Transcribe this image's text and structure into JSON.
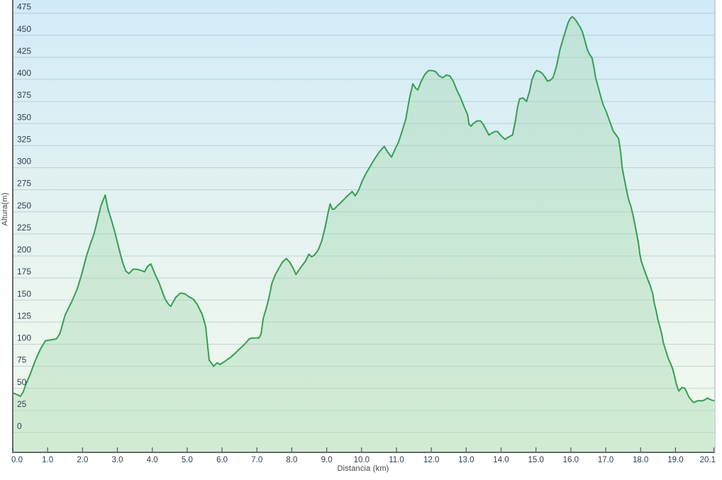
{
  "chart_data": {
    "type": "area",
    "title": "",
    "xlabel": "Distancia (km)",
    "ylabel": "Altura(m)",
    "xlim": [
      0,
      20.1
    ],
    "ylim": [
      0,
      475
    ],
    "grid": "horizontal",
    "legend": "none",
    "y_ticks": [
      0,
      25,
      50,
      75,
      100,
      125,
      150,
      175,
      200,
      225,
      250,
      275,
      300,
      325,
      350,
      375,
      400,
      425,
      450,
      475
    ],
    "x_tick_values": [
      0,
      1,
      2,
      3,
      4,
      5,
      6,
      7,
      8,
      9,
      10,
      11,
      12,
      13,
      14,
      15,
      16,
      17,
      18,
      19,
      20.1
    ],
    "x_tick_labels": [
      "0.0",
      "1.0",
      "2.0",
      "3.0",
      "4.0",
      "5.0",
      "6.0",
      "7.0",
      "8.0",
      "9.0",
      "10.0",
      "11.0",
      "12.0",
      "13.0",
      "14.0",
      "15.0",
      "16.0",
      "17.0",
      "18.0",
      "19.0",
      "20.1"
    ],
    "colors": {
      "line": "#349e53",
      "fill": "rgba(163,214,175,0.40)",
      "bg_top": "#d2ebf8",
      "bg_mid": "#e8f4ef",
      "bg_bottom": "#f1f9ec",
      "grid": "rgba(130,155,162,0.38)",
      "axis": "#6a6a6a",
      "tick": "#555555",
      "tick_text": "#2e4053",
      "right_border": "#b9c6cc"
    },
    "series": [
      {
        "name": "Altura",
        "points": [
          [
            0,
            45
          ],
          [
            0.12,
            43
          ],
          [
            0.22,
            41
          ],
          [
            0.3,
            46
          ],
          [
            0.37,
            54
          ],
          [
            0.5,
            66
          ],
          [
            0.65,
            82
          ],
          [
            0.8,
            95
          ],
          [
            0.94,
            104
          ],
          [
            1.1,
            105
          ],
          [
            1.25,
            106
          ],
          [
            1.35,
            112
          ],
          [
            1.5,
            133
          ],
          [
            1.7,
            149
          ],
          [
            1.85,
            163
          ],
          [
            1.96,
            177
          ],
          [
            2.12,
            201
          ],
          [
            2.22,
            213
          ],
          [
            2.33,
            225
          ],
          [
            2.43,
            241
          ],
          [
            2.53,
            257
          ],
          [
            2.65,
            269
          ],
          [
            2.73,
            253
          ],
          [
            2.84,
            239
          ],
          [
            2.94,
            225
          ],
          [
            3.04,
            209
          ],
          [
            3.14,
            194
          ],
          [
            3.24,
            183
          ],
          [
            3.33,
            180
          ],
          [
            3.45,
            185
          ],
          [
            3.55,
            185
          ],
          [
            3.65,
            184
          ],
          [
            3.78,
            182
          ],
          [
            3.86,
            188
          ],
          [
            3.96,
            191
          ],
          [
            4.06,
            181
          ],
          [
            4.2,
            169
          ],
          [
            4.31,
            157
          ],
          [
            4.37,
            151
          ],
          [
            4.47,
            145
          ],
          [
            4.53,
            143
          ],
          [
            4.67,
            153
          ],
          [
            4.78,
            157
          ],
          [
            4.82,
            158
          ],
          [
            4.94,
            157
          ],
          [
            5.04,
            154
          ],
          [
            5.18,
            151
          ],
          [
            5.29,
            145
          ],
          [
            5.43,
            134
          ],
          [
            5.53,
            120
          ],
          [
            5.63,
            82
          ],
          [
            5.76,
            75
          ],
          [
            5.86,
            79
          ],
          [
            5.94,
            77
          ],
          [
            6.06,
            80
          ],
          [
            6.2,
            84
          ],
          [
            6.27,
            86
          ],
          [
            6.41,
            91
          ],
          [
            6.51,
            95
          ],
          [
            6.65,
            100
          ],
          [
            6.78,
            106
          ],
          [
            6.86,
            107
          ],
          [
            7.06,
            107
          ],
          [
            7.12,
            112
          ],
          [
            7.18,
            129
          ],
          [
            7.27,
            141
          ],
          [
            7.33,
            150
          ],
          [
            7.43,
            169
          ],
          [
            7.53,
            179
          ],
          [
            7.63,
            186
          ],
          [
            7.73,
            193
          ],
          [
            7.84,
            197
          ],
          [
            7.94,
            193
          ],
          [
            8.04,
            186
          ],
          [
            8.12,
            179
          ],
          [
            8.24,
            186
          ],
          [
            8.39,
            194
          ],
          [
            8.49,
            202
          ],
          [
            8.57,
            199
          ],
          [
            8.65,
            201
          ],
          [
            8.76,
            207
          ],
          [
            8.86,
            217
          ],
          [
            8.96,
            233
          ],
          [
            9.04,
            249
          ],
          [
            9.1,
            259
          ],
          [
            9.16,
            253
          ],
          [
            9.22,
            253
          ],
          [
            9.31,
            257
          ],
          [
            9.37,
            259
          ],
          [
            9.47,
            263
          ],
          [
            9.57,
            267
          ],
          [
            9.65,
            270
          ],
          [
            9.73,
            273
          ],
          [
            9.82,
            268
          ],
          [
            9.92,
            275
          ],
          [
            10.02,
            285
          ],
          [
            10.12,
            293
          ],
          [
            10.24,
            301
          ],
          [
            10.39,
            311
          ],
          [
            10.53,
            319
          ],
          [
            10.65,
            324
          ],
          [
            10.76,
            317
          ],
          [
            10.86,
            312
          ],
          [
            10.96,
            321
          ],
          [
            11.06,
            329
          ],
          [
            11.16,
            341
          ],
          [
            11.27,
            355
          ],
          [
            11.37,
            378
          ],
          [
            11.47,
            395
          ],
          [
            11.55,
            390
          ],
          [
            11.61,
            388
          ],
          [
            11.71,
            398
          ],
          [
            11.82,
            406
          ],
          [
            11.92,
            410
          ],
          [
            12.02,
            410
          ],
          [
            12.12,
            409
          ],
          [
            12.22,
            404
          ],
          [
            12.33,
            402
          ],
          [
            12.43,
            405
          ],
          [
            12.53,
            404
          ],
          [
            12.63,
            398
          ],
          [
            12.73,
            388
          ],
          [
            12.84,
            379
          ],
          [
            12.94,
            369
          ],
          [
            13.04,
            360
          ],
          [
            13.08,
            349
          ],
          [
            13.14,
            347
          ],
          [
            13.2,
            350
          ],
          [
            13.31,
            353
          ],
          [
            13.41,
            353
          ],
          [
            13.49,
            349
          ],
          [
            13.57,
            343
          ],
          [
            13.65,
            337
          ],
          [
            13.73,
            339
          ],
          [
            13.82,
            341
          ],
          [
            13.9,
            341
          ],
          [
            13.98,
            337
          ],
          [
            14.06,
            334
          ],
          [
            14.12,
            332
          ],
          [
            14.18,
            334
          ],
          [
            14.27,
            336
          ],
          [
            14.33,
            337
          ],
          [
            14.41,
            353
          ],
          [
            14.47,
            368
          ],
          [
            14.53,
            378
          ],
          [
            14.63,
            379
          ],
          [
            14.73,
            375
          ],
          [
            14.82,
            387
          ],
          [
            14.88,
            399
          ],
          [
            14.96,
            407
          ],
          [
            15.02,
            410
          ],
          [
            15.1,
            409
          ],
          [
            15.18,
            407
          ],
          [
            15.27,
            402
          ],
          [
            15.33,
            398
          ],
          [
            15.41,
            399
          ],
          [
            15.49,
            402
          ],
          [
            15.59,
            415
          ],
          [
            15.69,
            434
          ],
          [
            15.78,
            446
          ],
          [
            15.84,
            454
          ],
          [
            15.92,
            464
          ],
          [
            15.98,
            469
          ],
          [
            16.04,
            471
          ],
          [
            16.1,
            469
          ],
          [
            16.16,
            466
          ],
          [
            16.27,
            459
          ],
          [
            16.33,
            454
          ],
          [
            16.39,
            446
          ],
          [
            16.47,
            434
          ],
          [
            16.53,
            429
          ],
          [
            16.61,
            424
          ],
          [
            16.67,
            412
          ],
          [
            16.71,
            402
          ],
          [
            16.78,
            392
          ],
          [
            16.82,
            386
          ],
          [
            16.92,
            372
          ],
          [
            17.02,
            363
          ],
          [
            17.12,
            352
          ],
          [
            17.22,
            341
          ],
          [
            17.3,
            337
          ],
          [
            17.37,
            333
          ],
          [
            17.43,
            317
          ],
          [
            17.47,
            300
          ],
          [
            17.53,
            288
          ],
          [
            17.59,
            276
          ],
          [
            17.65,
            265
          ],
          [
            17.73,
            255
          ],
          [
            17.8,
            243
          ],
          [
            17.88,
            227
          ],
          [
            17.94,
            214
          ],
          [
            17.98,
            202
          ],
          [
            18.02,
            194
          ],
          [
            18.1,
            185
          ],
          [
            18.18,
            176
          ],
          [
            18.28,
            166
          ],
          [
            18.35,
            157
          ],
          [
            18.39,
            147
          ],
          [
            18.45,
            137
          ],
          [
            18.49,
            129
          ],
          [
            18.55,
            120
          ],
          [
            18.61,
            111
          ],
          [
            18.65,
            102
          ],
          [
            18.73,
            92
          ],
          [
            18.8,
            83
          ],
          [
            18.86,
            78
          ],
          [
            18.92,
            72
          ],
          [
            18.98,
            63
          ],
          [
            19.02,
            56
          ],
          [
            19.06,
            50
          ],
          [
            19.1,
            47
          ],
          [
            19.16,
            50
          ],
          [
            19.2,
            51
          ],
          [
            19.27,
            50
          ],
          [
            19.33,
            45
          ],
          [
            19.39,
            40
          ],
          [
            19.43,
            38
          ],
          [
            19.49,
            35
          ],
          [
            19.53,
            34
          ],
          [
            19.59,
            35
          ],
          [
            19.63,
            36
          ],
          [
            19.71,
            36
          ],
          [
            19.78,
            36
          ],
          [
            19.84,
            37
          ],
          [
            19.92,
            39
          ],
          [
            19.96,
            38
          ],
          [
            20.02,
            37
          ],
          [
            20.1,
            36
          ]
        ]
      }
    ]
  }
}
